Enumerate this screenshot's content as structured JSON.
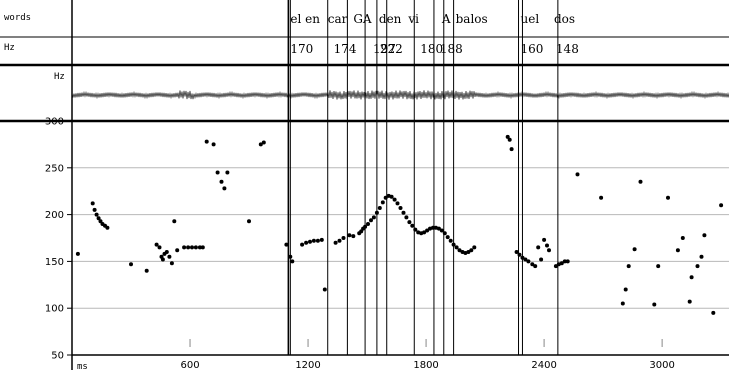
{
  "chart_data": {
    "type": "scatter",
    "tiers": [
      {
        "name": "words",
        "labels": [
          {
            "text": "el en",
            "t": 1100
          },
          {
            "text": "car",
            "t": 1290
          },
          {
            "text": "GA",
            "t": 1420
          },
          {
            "text": "den",
            "t": 1550
          },
          {
            "text": "vi",
            "t": 1700
          },
          {
            "text": "A",
            "t": 1870
          },
          {
            "text": "balos",
            "t": 1940
          },
          {
            "text": "uel",
            "t": 2270
          },
          {
            "text": "dos",
            "t": 2440
          }
        ]
      },
      {
        "name": "Hz",
        "labels": [
          {
            "text": "170",
            "t": 1100
          },
          {
            "text": "174",
            "t": 1320
          },
          {
            "text": "197",
            "t": 1520
          },
          {
            "text": "222",
            "t": 1555
          },
          {
            "text": "180",
            "t": 1760
          },
          {
            "text": "188",
            "t": 1860
          },
          {
            "text": "160",
            "t": 2270
          },
          {
            "text": "148",
            "t": 2450
          }
        ]
      }
    ],
    "boundaries_ms": [
      1100,
      1110,
      1300,
      1400,
      1490,
      1550,
      1600,
      1740,
      1840,
      1890,
      1940,
      2270,
      2290,
      2470
    ],
    "waveform_label": "Hz",
    "x_unit_label": "ms",
    "xlim": [
      0,
      3340
    ],
    "ylim": [
      50,
      300
    ],
    "x_ticks": [
      600,
      1200,
      1800,
      2400,
      3000
    ],
    "x_ticklabels": [
      "600",
      "1200",
      "1800",
      "2400",
      "3000"
    ],
    "y_ticks": [
      50,
      100,
      150,
      200,
      250,
      300
    ],
    "y_ticklabels": [
      "50",
      "100",
      "150",
      "200",
      "250",
      "300"
    ],
    "grid": true,
    "series": [
      {
        "points": [
          [
            30,
            158
          ],
          [
            105,
            212
          ],
          [
            115,
            205
          ],
          [
            125,
            200
          ],
          [
            135,
            196
          ],
          [
            145,
            193
          ],
          [
            155,
            190
          ],
          [
            168,
            188
          ],
          [
            180,
            186
          ],
          [
            300,
            147
          ],
          [
            380,
            140
          ],
          [
            430,
            168
          ],
          [
            445,
            165
          ],
          [
            455,
            155
          ],
          [
            462,
            152
          ],
          [
            470,
            158
          ],
          [
            482,
            160
          ],
          [
            495,
            155
          ],
          [
            508,
            148
          ],
          [
            520,
            193
          ],
          [
            535,
            162
          ],
          [
            570,
            165
          ],
          [
            590,
            165
          ],
          [
            610,
            165
          ],
          [
            630,
            165
          ],
          [
            650,
            165
          ],
          [
            665,
            165
          ],
          [
            685,
            278
          ],
          [
            720,
            275
          ],
          [
            740,
            245
          ],
          [
            760,
            235
          ],
          [
            775,
            228
          ],
          [
            790,
            245
          ],
          [
            900,
            193
          ],
          [
            960,
            275
          ],
          [
            975,
            277
          ],
          [
            1090,
            168
          ],
          [
            1110,
            155
          ],
          [
            1120,
            150
          ],
          [
            1170,
            168
          ],
          [
            1190,
            170
          ],
          [
            1210,
            171
          ],
          [
            1230,
            172
          ],
          [
            1250,
            172
          ],
          [
            1270,
            173
          ],
          [
            1285,
            120
          ],
          [
            1340,
            170
          ],
          [
            1360,
            172
          ],
          [
            1380,
            175
          ],
          [
            1410,
            178
          ],
          [
            1430,
            177
          ],
          [
            1460,
            180
          ],
          [
            1470,
            182
          ],
          [
            1480,
            185
          ],
          [
            1490,
            187
          ],
          [
            1505,
            190
          ],
          [
            1520,
            194
          ],
          [
            1535,
            197
          ],
          [
            1550,
            202
          ],
          [
            1565,
            207
          ],
          [
            1580,
            213
          ],
          [
            1595,
            218
          ],
          [
            1610,
            220
          ],
          [
            1625,
            219
          ],
          [
            1640,
            216
          ],
          [
            1655,
            212
          ],
          [
            1670,
            207
          ],
          [
            1685,
            202
          ],
          [
            1700,
            197
          ],
          [
            1715,
            192
          ],
          [
            1730,
            188
          ],
          [
            1745,
            184
          ],
          [
            1760,
            181
          ],
          [
            1775,
            180
          ],
          [
            1790,
            181
          ],
          [
            1805,
            183
          ],
          [
            1820,
            185
          ],
          [
            1835,
            186
          ],
          [
            1850,
            186
          ],
          [
            1865,
            185
          ],
          [
            1880,
            183
          ],
          [
            1895,
            180
          ],
          [
            1910,
            176
          ],
          [
            1925,
            172
          ],
          [
            1940,
            168
          ],
          [
            1955,
            165
          ],
          [
            1970,
            162
          ],
          [
            1985,
            160
          ],
          [
            2000,
            159
          ],
          [
            2015,
            160
          ],
          [
            2030,
            162
          ],
          [
            2045,
            165
          ],
          [
            2215,
            283
          ],
          [
            2225,
            280
          ],
          [
            2235,
            270
          ],
          [
            2260,
            160
          ],
          [
            2275,
            157
          ],
          [
            2290,
            154
          ],
          [
            2305,
            152
          ],
          [
            2320,
            150
          ],
          [
            2340,
            147
          ],
          [
            2355,
            145
          ],
          [
            2370,
            165
          ],
          [
            2385,
            152
          ],
          [
            2400,
            173
          ],
          [
            2415,
            167
          ],
          [
            2425,
            162
          ],
          [
            2460,
            145
          ],
          [
            2475,
            147
          ],
          [
            2490,
            148
          ],
          [
            2505,
            150
          ],
          [
            2520,
            150
          ],
          [
            2570,
            243
          ],
          [
            2690,
            218
          ],
          [
            2800,
            105
          ],
          [
            2815,
            120
          ],
          [
            2830,
            145
          ],
          [
            2860,
            163
          ],
          [
            2890,
            235
          ],
          [
            2960,
            104
          ],
          [
            2980,
            145
          ],
          [
            3030,
            218
          ],
          [
            3080,
            162
          ],
          [
            3105,
            175
          ],
          [
            3140,
            107
          ],
          [
            3150,
            133
          ],
          [
            3180,
            145
          ],
          [
            3200,
            155
          ],
          [
            3215,
            178
          ],
          [
            3260,
            95
          ],
          [
            3300,
            210
          ]
        ]
      }
    ]
  }
}
